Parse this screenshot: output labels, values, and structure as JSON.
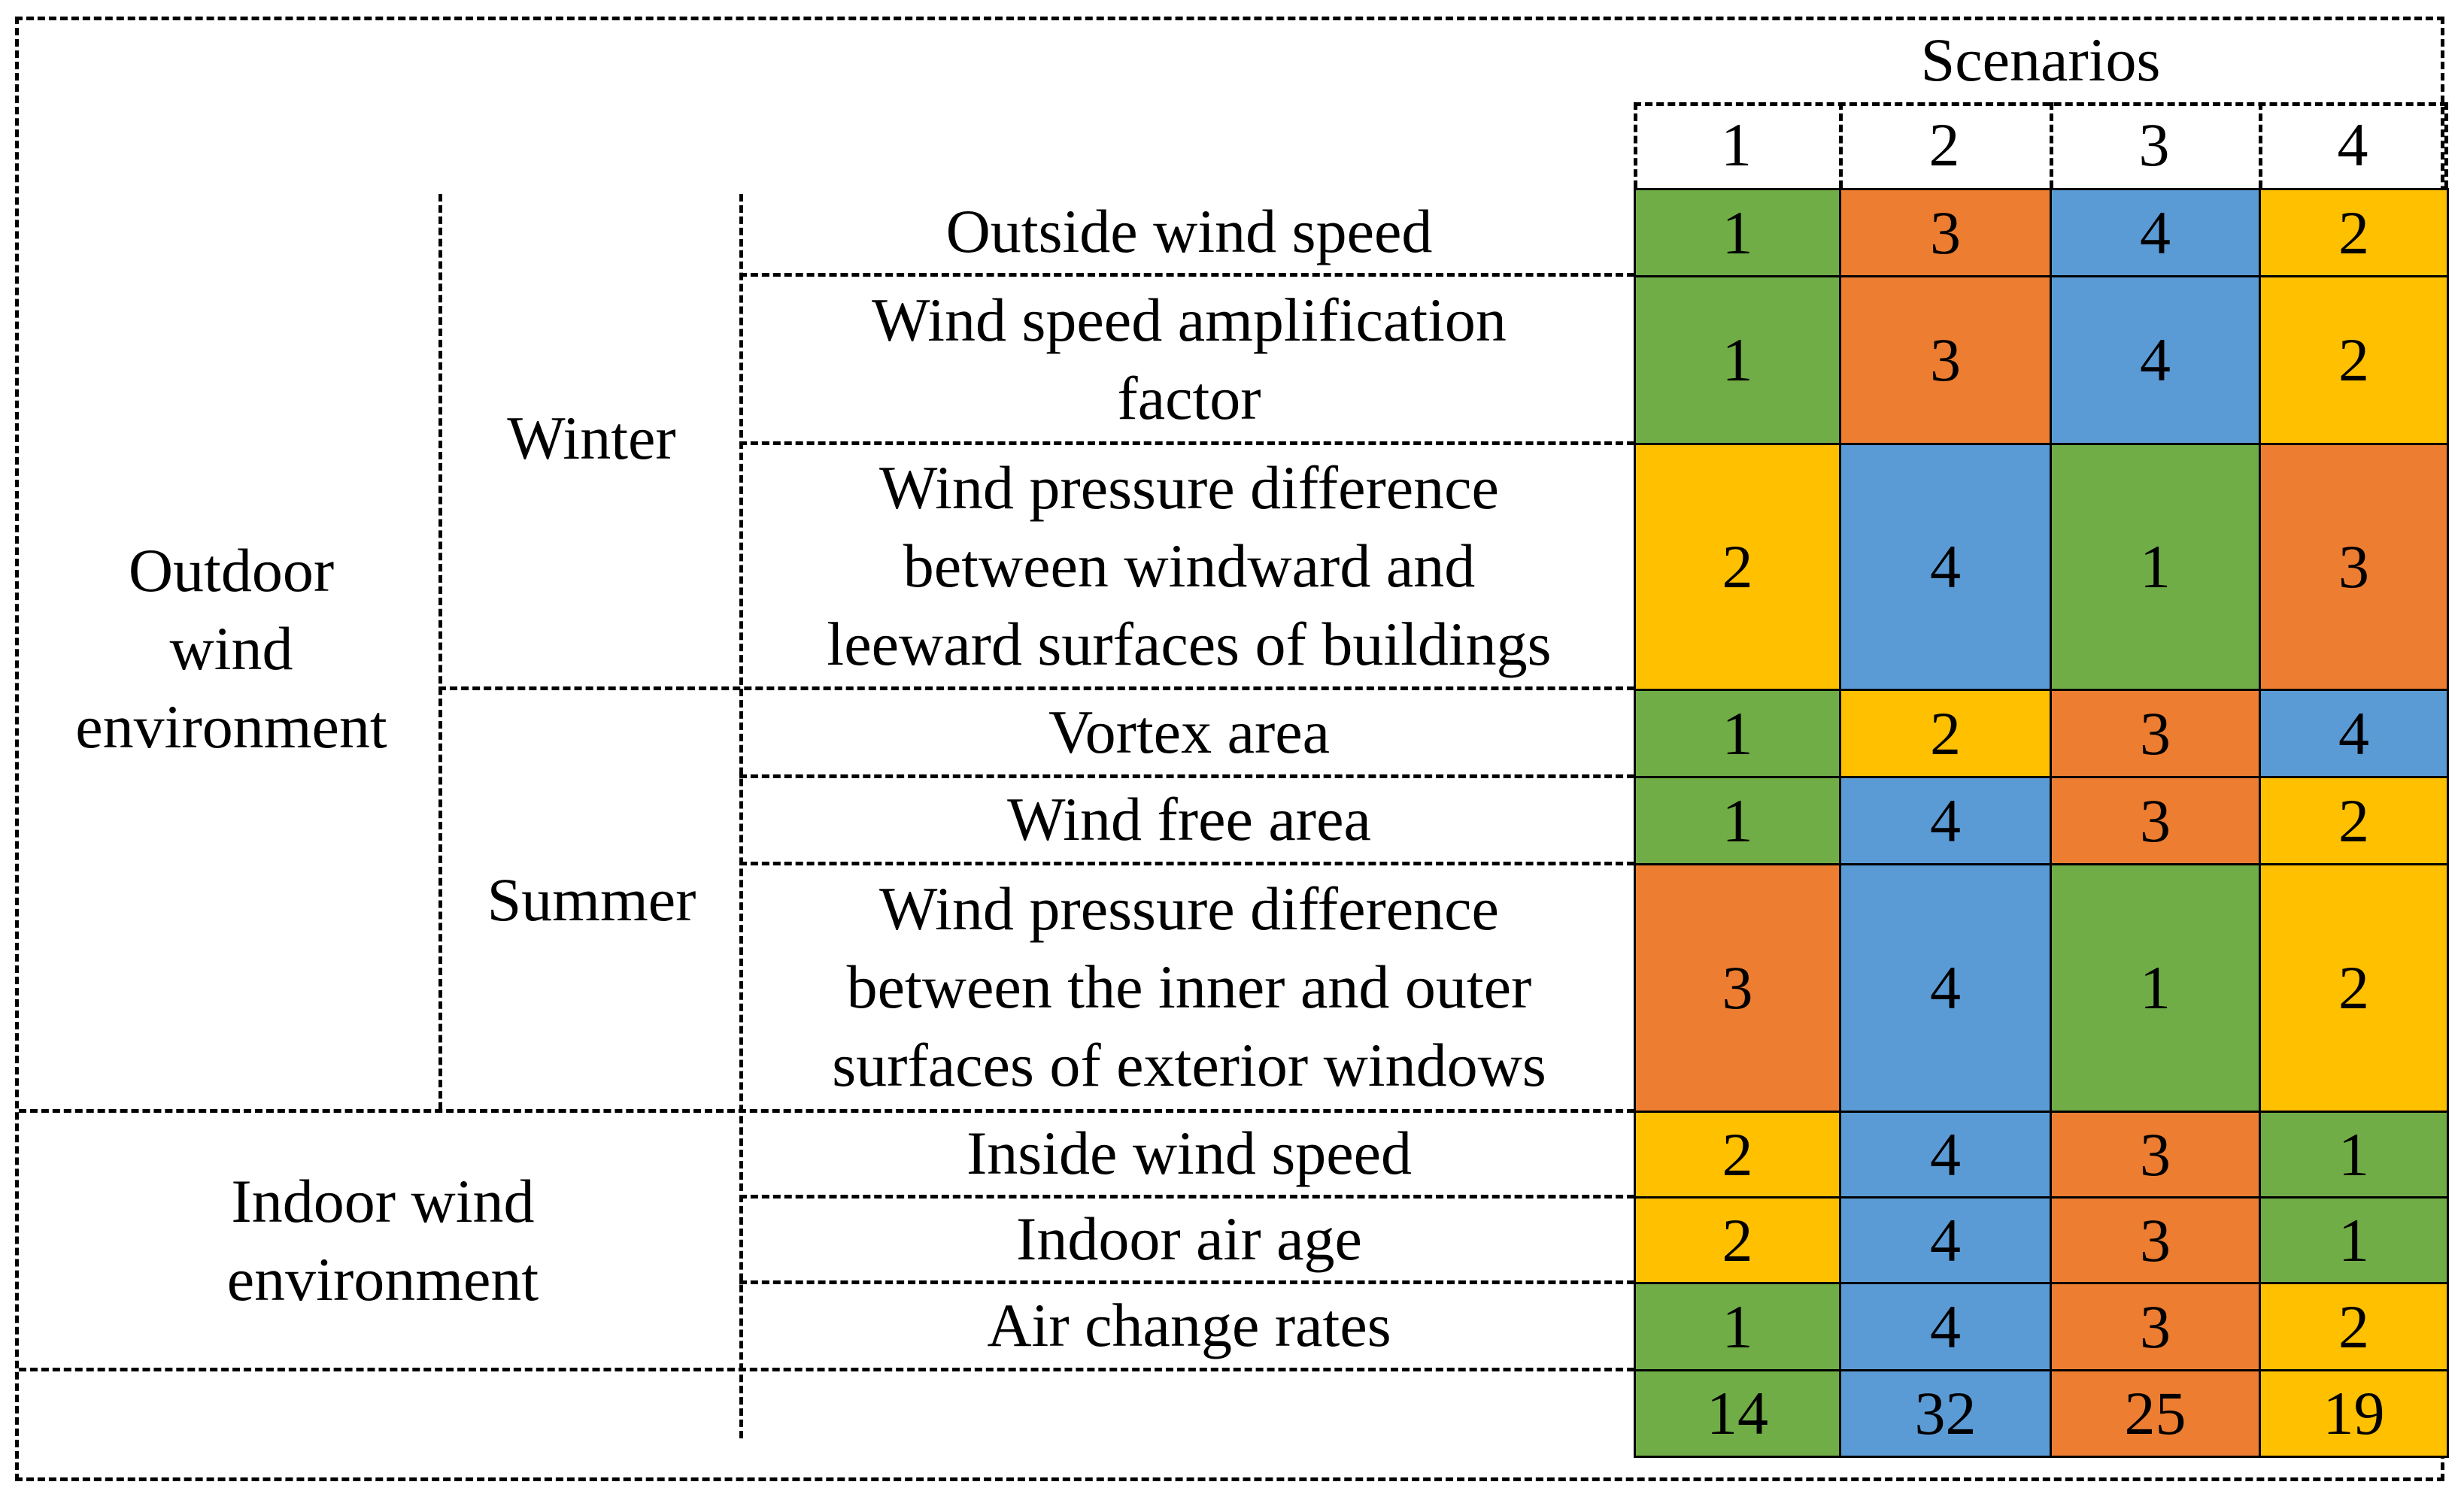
{
  "chart_data": {
    "type": "table",
    "header": {
      "title": "Scenarios",
      "scenarios": [
        "1",
        "2",
        "3",
        "4"
      ]
    },
    "groups": [
      {
        "label": "Outdoor\nwind\nenvironment"
      },
      {
        "label": "Indoor wind\nenvironment"
      }
    ],
    "seasons": [
      {
        "label": "Winter"
      },
      {
        "label": "Summer"
      }
    ],
    "rows": [
      {
        "group": "Outdoor wind environment",
        "season": "Winter",
        "indicator": "Outside wind speed",
        "values": [
          1,
          3,
          4,
          2
        ]
      },
      {
        "group": "Outdoor wind environment",
        "season": "Winter",
        "indicator": "Wind speed amplification\nfactor",
        "values": [
          1,
          3,
          4,
          2
        ]
      },
      {
        "group": "Outdoor wind environment",
        "season": "Winter",
        "indicator": "Wind pressure difference\nbetween windward and\nleeward surfaces of buildings",
        "values": [
          2,
          4,
          1,
          3
        ]
      },
      {
        "group": "Outdoor wind environment",
        "season": "Summer",
        "indicator": "Vortex area",
        "values": [
          1,
          2,
          3,
          4
        ]
      },
      {
        "group": "Outdoor wind environment",
        "season": "Summer",
        "indicator": "Wind free area",
        "values": [
          1,
          4,
          3,
          2
        ]
      },
      {
        "group": "Outdoor wind environment",
        "season": "Summer",
        "indicator": "Wind pressure difference\nbetween the inner and outer\nsurfaces of exterior windows",
        "values": [
          3,
          4,
          1,
          2
        ]
      },
      {
        "group": "Indoor wind environment",
        "season": "",
        "indicator": "Inside wind speed",
        "values": [
          2,
          4,
          3,
          1
        ]
      },
      {
        "group": "Indoor wind environment",
        "season": "",
        "indicator": "Indoor air age",
        "values": [
          2,
          4,
          3,
          1
        ]
      },
      {
        "group": "Indoor wind environment",
        "season": "",
        "indicator": "Air change rates",
        "values": [
          1,
          4,
          3,
          2
        ]
      }
    ],
    "totals": [
      14,
      32,
      25,
      19
    ],
    "rank_colors": {
      "1": "#70AD47",
      "2": "#FFC000",
      "3": "#ED7D31",
      "4": "#5B9BD5"
    },
    "totals_colors": [
      "#70AD47",
      "#5B9BD5",
      "#ED7D31",
      "#FFC000"
    ]
  }
}
